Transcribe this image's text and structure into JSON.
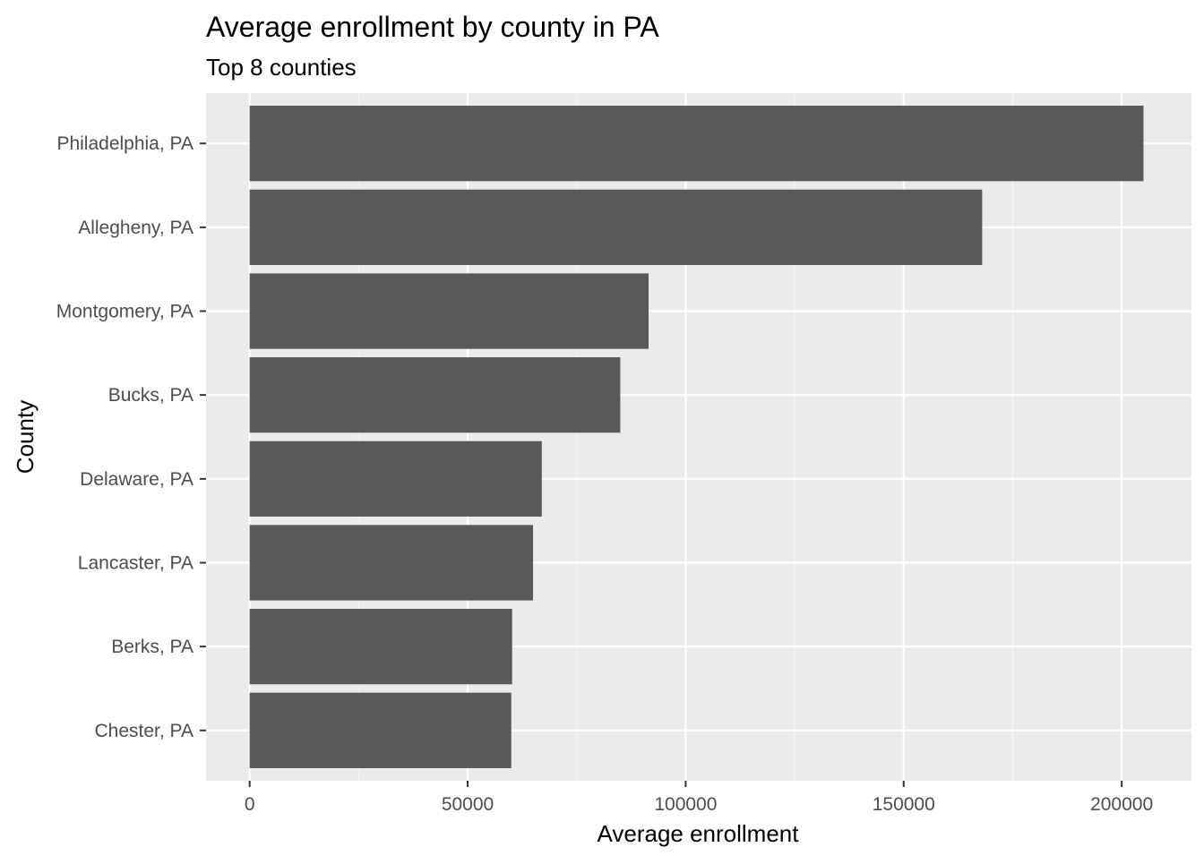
{
  "chart_data": {
    "type": "bar",
    "orientation": "horizontal",
    "title": "Average enrollment by county in PA",
    "subtitle": "Top 8 counties",
    "xlabel": "Average enrollment",
    "ylabel": "County",
    "categories": [
      "Philadelphia, PA",
      "Allegheny, PA",
      "Montgomery, PA",
      "Bucks, PA",
      "Delaware, PA",
      "Lancaster, PA",
      "Berks, PA",
      "Chester, PA"
    ],
    "values": [
      205000,
      168000,
      91500,
      85000,
      67000,
      65000,
      60200,
      60000
    ],
    "xlim": [
      -10000,
      216000
    ],
    "x_ticks": [
      0,
      50000,
      100000,
      150000,
      200000
    ],
    "x_tick_labels": [
      "0",
      "50000",
      "100000",
      "150000",
      "200000"
    ],
    "grid": true,
    "colors": {
      "bar": "#595959",
      "panel": "#ebebeb",
      "grid_major": "#ffffff",
      "grid_minor": "#f5f5f5",
      "tick": "#333333"
    }
  }
}
